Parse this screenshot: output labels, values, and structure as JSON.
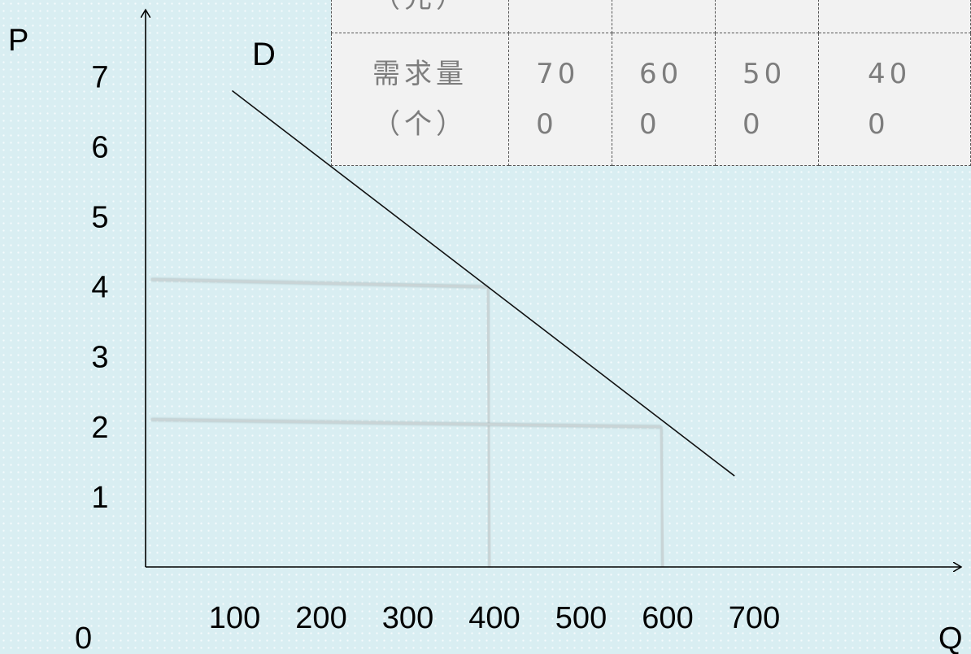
{
  "chart_data": {
    "type": "line",
    "axes": {
      "y_label": "P",
      "x_label": "Q",
      "origin_label": "0"
    },
    "y_ticks": [
      "1",
      "2",
      "3",
      "4",
      "5",
      "6",
      "7"
    ],
    "x_ticks": [
      "100",
      "200",
      "300",
      "400",
      "500",
      "600",
      "700"
    ],
    "curve_label": "D",
    "series": [
      {
        "name": "D",
        "points": [
          [
            100,
            6.8
          ],
          [
            680,
            1.3
          ]
        ]
      }
    ],
    "guide_points": [
      {
        "q": 400,
        "p": 4
      },
      {
        "q": 600,
        "p": 2
      }
    ],
    "colors": {
      "curve": "#111111",
      "guide": "#c9d4d6"
    }
  },
  "table": {
    "price_header": "（元）",
    "qty_header": "需求量（个）",
    "qty_values": [
      "700",
      "600",
      "500",
      "400"
    ]
  }
}
